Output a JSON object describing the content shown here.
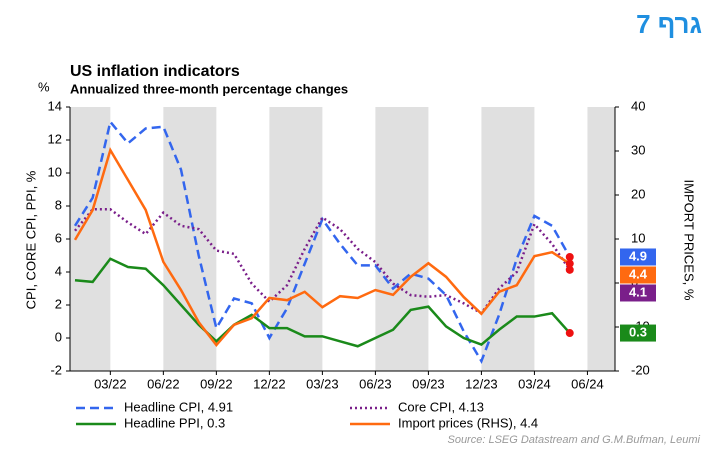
{
  "header": {
    "badge": "גרף 7"
  },
  "chart_data": {
    "type": "line",
    "title": "US inflation indicators",
    "subtitle": "Annualized three-month percentage changes",
    "y_unit": "%",
    "ylabel": "CPI, CORE CPI, PPI, %",
    "y2label": "IMPORT PRICES, %",
    "source": "Source: LSEG Datastream  and G.M.Bufman, Leumi",
    "categories": [
      null,
      null,
      "03/22",
      null,
      null,
      "06/22",
      null,
      null,
      "09/22",
      null,
      null,
      "12/22",
      null,
      null,
      "03/23",
      null,
      null,
      "06/23",
      null,
      null,
      "09/23",
      null,
      null,
      "12/23",
      null,
      null,
      "03/24",
      null,
      null,
      "06/24"
    ],
    "ylim": [
      -2,
      14
    ],
    "yticks": [
      -2,
      0,
      2,
      4,
      6,
      8,
      10,
      12,
      14
    ],
    "y2lim": [
      -20,
      40
    ],
    "y2ticks": [
      -20,
      -10,
      0,
      10,
      20,
      30,
      40
    ],
    "grid": false,
    "series": [
      {
        "name": "Headline CPI, 4.91",
        "color": "#3366ee",
        "style": "dashed",
        "end_label": "4.9",
        "values": [
          6.8,
          8.5,
          13.1,
          11.8,
          12.7,
          12.8,
          10.2,
          5.0,
          0.6,
          2.4,
          2.1,
          0.0,
          1.8,
          4.5,
          7.2,
          5.7,
          4.4,
          4.4,
          3.0,
          3.9,
          3.6,
          2.6,
          0.4,
          -1.4,
          1.4,
          4.8,
          7.4,
          6.8,
          4.91,
          null
        ]
      },
      {
        "name": "Core CPI, 4.13",
        "color": "#7a1f8a",
        "style": "dotted",
        "end_label": "4.1",
        "values": [
          6.5,
          7.8,
          7.8,
          7.0,
          6.3,
          7.6,
          6.8,
          6.6,
          5.3,
          5.1,
          3.3,
          2.2,
          3.2,
          5.4,
          7.3,
          6.6,
          5.4,
          4.6,
          3.3,
          2.6,
          2.5,
          2.6,
          2.1,
          1.5,
          3.0,
          4.0,
          6.9,
          5.7,
          4.13,
          null
        ]
      },
      {
        "name": "Headline PPI, 0.3",
        "color": "#1a8a1a",
        "style": "solid",
        "end_label": "0.3",
        "values": [
          3.5,
          3.4,
          4.8,
          4.3,
          4.2,
          3.2,
          2.0,
          0.8,
          -0.2,
          0.8,
          1.4,
          0.6,
          0.6,
          0.1,
          0.1,
          -0.2,
          -0.5,
          0.0,
          0.5,
          1.7,
          1.9,
          0.7,
          0.0,
          -0.4,
          0.5,
          1.3,
          1.3,
          1.5,
          0.3,
          null
        ]
      },
      {
        "name": "Import prices (RHS), 4.4",
        "color": "#ff6a10",
        "style": "solid",
        "axis": "y2",
        "end_label": "4.4",
        "values": [
          9.8,
          16.6,
          30.2,
          23.4,
          16.6,
          4.8,
          -1.6,
          -8.9,
          -14.1,
          -9.5,
          -8.0,
          -3.4,
          -3.9,
          -2.0,
          -5.5,
          -3.0,
          -3.4,
          -1.6,
          -2.7,
          1.4,
          4.5,
          1.4,
          -3.2,
          -7.0,
          -2.0,
          -0.5,
          6.1,
          7.0,
          4.4,
          null
        ]
      }
    ]
  }
}
